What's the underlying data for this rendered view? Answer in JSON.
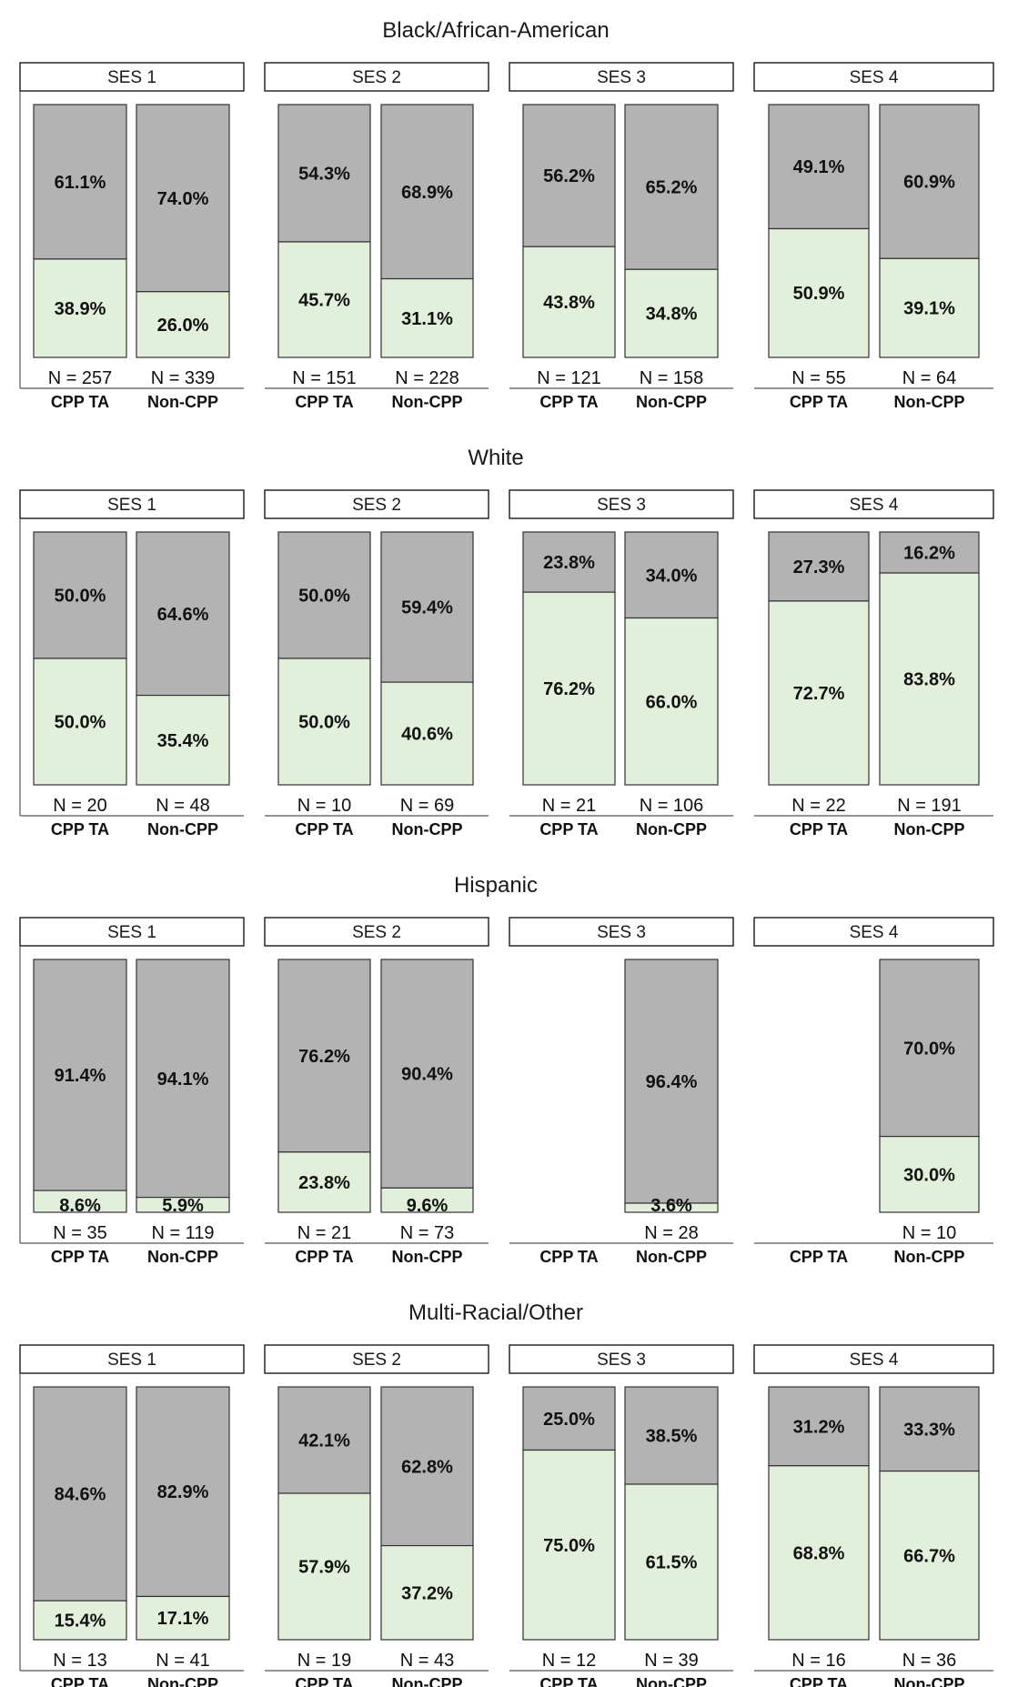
{
  "chart_data": {
    "type": "bar",
    "subtype": "stacked-100-percent-faceted",
    "categories": [
      "CPP TA",
      "Non-CPP"
    ],
    "panel_labels": [
      "SES 1",
      "SES 2",
      "SES 3",
      "SES 4"
    ],
    "colors": {
      "top": "#b3b3b3",
      "bottom": "#e2efda",
      "border": "#333333"
    },
    "groups": [
      {
        "title": "Black/African-American",
        "panels": [
          {
            "label": "SES 1",
            "bars": [
              {
                "category": "CPP TA",
                "bottom": 38.9,
                "top": 61.1,
                "bottom_label": "38.9%",
                "top_label": "61.1%",
                "n": "N = 257"
              },
              {
                "category": "Non-CPP",
                "bottom": 26.0,
                "top": 74.0,
                "bottom_label": "26.0%",
                "top_label": "74.0%",
                "n": "N = 339"
              }
            ]
          },
          {
            "label": "SES 2",
            "bars": [
              {
                "category": "CPP TA",
                "bottom": 45.7,
                "top": 54.3,
                "bottom_label": "45.7%",
                "top_label": "54.3%",
                "n": "N = 151"
              },
              {
                "category": "Non-CPP",
                "bottom": 31.1,
                "top": 68.9,
                "bottom_label": "31.1%",
                "top_label": "68.9%",
                "n": "N = 228"
              }
            ]
          },
          {
            "label": "SES 3",
            "bars": [
              {
                "category": "CPP TA",
                "bottom": 43.8,
                "top": 56.2,
                "bottom_label": "43.8%",
                "top_label": "56.2%",
                "n": "N = 121"
              },
              {
                "category": "Non-CPP",
                "bottom": 34.8,
                "top": 65.2,
                "bottom_label": "34.8%",
                "top_label": "65.2%",
                "n": "N = 158"
              }
            ]
          },
          {
            "label": "SES 4",
            "bars": [
              {
                "category": "CPP TA",
                "bottom": 50.9,
                "top": 49.1,
                "bottom_label": "50.9%",
                "top_label": "49.1%",
                "n": "N = 55"
              },
              {
                "category": "Non-CPP",
                "bottom": 39.1,
                "top": 60.9,
                "bottom_label": "39.1%",
                "top_label": "60.9%",
                "n": "N = 64"
              }
            ]
          }
        ]
      },
      {
        "title": "White",
        "panels": [
          {
            "label": "SES 1",
            "bars": [
              {
                "category": "CPP TA",
                "bottom": 50.0,
                "top": 50.0,
                "bottom_label": "50.0%",
                "top_label": "50.0%",
                "n": "N = 20"
              },
              {
                "category": "Non-CPP",
                "bottom": 35.4,
                "top": 64.6,
                "bottom_label": "35.4%",
                "top_label": "64.6%",
                "n": "N = 48"
              }
            ]
          },
          {
            "label": "SES 2",
            "bars": [
              {
                "category": "CPP TA",
                "bottom": 50.0,
                "top": 50.0,
                "bottom_label": "50.0%",
                "top_label": "50.0%",
                "n": "N = 10"
              },
              {
                "category": "Non-CPP",
                "bottom": 40.6,
                "top": 59.4,
                "bottom_label": "40.6%",
                "top_label": "59.4%",
                "n": "N = 69"
              }
            ]
          },
          {
            "label": "SES 3",
            "bars": [
              {
                "category": "CPP TA",
                "bottom": 76.2,
                "top": 23.8,
                "bottom_label": "76.2%",
                "top_label": "23.8%",
                "n": "N = 21"
              },
              {
                "category": "Non-CPP",
                "bottom": 66.0,
                "top": 34.0,
                "bottom_label": "66.0%",
                "top_label": "34.0%",
                "n": "N = 106"
              }
            ]
          },
          {
            "label": "SES 4",
            "bars": [
              {
                "category": "CPP TA",
                "bottom": 72.7,
                "top": 27.3,
                "bottom_label": "72.7%",
                "top_label": "27.3%",
                "n": "N = 22"
              },
              {
                "category": "Non-CPP",
                "bottom": 83.8,
                "top": 16.2,
                "bottom_label": "83.8%",
                "top_label": "16.2%",
                "n": "N = 191"
              }
            ]
          }
        ]
      },
      {
        "title": "Hispanic",
        "panels": [
          {
            "label": "SES 1",
            "bars": [
              {
                "category": "CPP TA",
                "bottom": 8.6,
                "top": 91.4,
                "bottom_label": "8.6%",
                "top_label": "91.4%",
                "n": "N = 35"
              },
              {
                "category": "Non-CPP",
                "bottom": 5.9,
                "top": 94.1,
                "bottom_label": "5.9%",
                "top_label": "94.1%",
                "n": "N = 119"
              }
            ]
          },
          {
            "label": "SES 2",
            "bars": [
              {
                "category": "CPP TA",
                "bottom": 23.8,
                "top": 76.2,
                "bottom_label": "23.8%",
                "top_label": "76.2%",
                "n": "N = 21"
              },
              {
                "category": "Non-CPP",
                "bottom": 9.6,
                "top": 90.4,
                "bottom_label": "9.6%",
                "top_label": "90.4%",
                "n": "N = 73"
              }
            ]
          },
          {
            "label": "SES 3",
            "bars": [
              {
                "category": "CPP TA",
                "bottom": null,
                "top": null,
                "bottom_label": null,
                "top_label": null,
                "n": null
              },
              {
                "category": "Non-CPP",
                "bottom": 3.6,
                "top": 96.4,
                "bottom_label": "3.6%",
                "top_label": "96.4%",
                "n": "N = 28"
              }
            ]
          },
          {
            "label": "SES 4",
            "bars": [
              {
                "category": "CPP TA",
                "bottom": null,
                "top": null,
                "bottom_label": null,
                "top_label": null,
                "n": null
              },
              {
                "category": "Non-CPP",
                "bottom": 30.0,
                "top": 70.0,
                "bottom_label": "30.0%",
                "top_label": "70.0%",
                "n": "N = 10"
              }
            ]
          }
        ]
      },
      {
        "title": "Multi-Racial/Other",
        "panels": [
          {
            "label": "SES 1",
            "bars": [
              {
                "category": "CPP TA",
                "bottom": 15.4,
                "top": 84.6,
                "bottom_label": "15.4%",
                "top_label": "84.6%",
                "n": "N = 13"
              },
              {
                "category": "Non-CPP",
                "bottom": 17.1,
                "top": 82.9,
                "bottom_label": "17.1%",
                "top_label": "82.9%",
                "n": "N = 41"
              }
            ]
          },
          {
            "label": "SES 2",
            "bars": [
              {
                "category": "CPP TA",
                "bottom": 57.9,
                "top": 42.1,
                "bottom_label": "57.9%",
                "top_label": "42.1%",
                "n": "N = 19"
              },
              {
                "category": "Non-CPP",
                "bottom": 37.2,
                "top": 62.8,
                "bottom_label": "37.2%",
                "top_label": "62.8%",
                "n": "N = 43"
              }
            ]
          },
          {
            "label": "SES 3",
            "bars": [
              {
                "category": "CPP TA",
                "bottom": 75.0,
                "top": 25.0,
                "bottom_label": "75.0%",
                "top_label": "25.0%",
                "n": "N = 12"
              },
              {
                "category": "Non-CPP",
                "bottom": 61.5,
                "top": 38.5,
                "bottom_label": "61.5%",
                "top_label": "38.5%",
                "n": "N = 39"
              }
            ]
          },
          {
            "label": "SES 4",
            "bars": [
              {
                "category": "CPP TA",
                "bottom": 68.8,
                "top": 31.2,
                "bottom_label": "68.8%",
                "top_label": "31.2%",
                "n": "N = 16"
              },
              {
                "category": "Non-CPP",
                "bottom": 66.7,
                "top": 33.3,
                "bottom_label": "66.7%",
                "top_label": "33.3%",
                "n": "N = 36"
              }
            ]
          }
        ]
      }
    ]
  }
}
